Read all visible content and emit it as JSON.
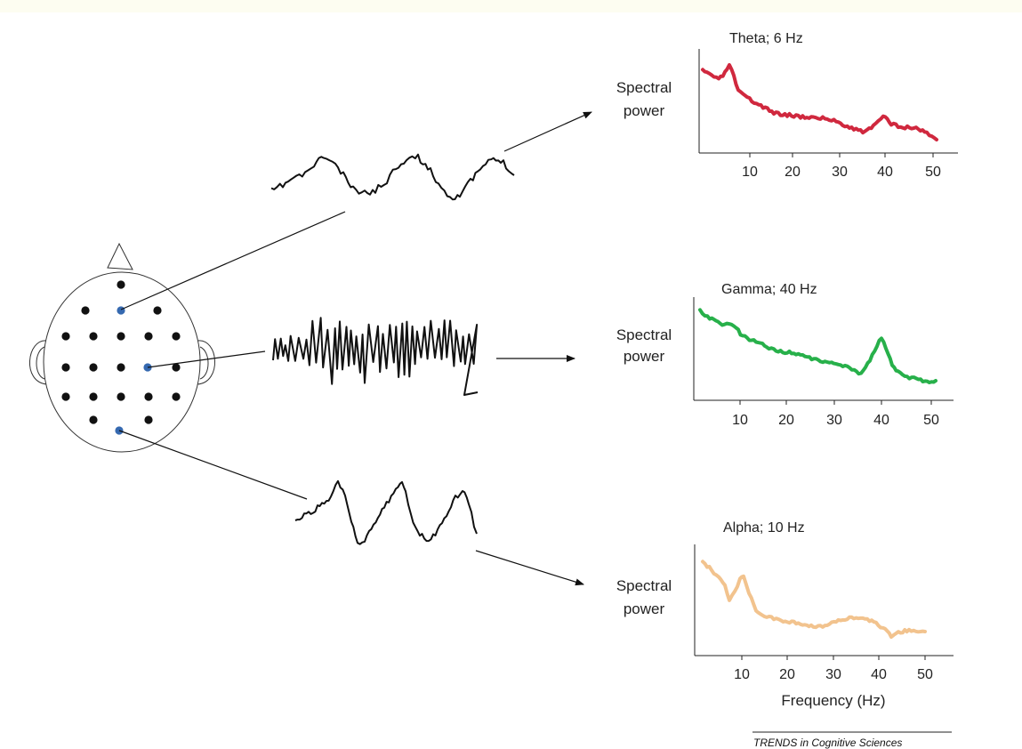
{
  "colors": {
    "theta": "#d0283e",
    "gamma": "#27b04a",
    "alpha": "#f2c38e",
    "active_electrode": "#3569b0",
    "electrode": "#111111",
    "trace": "#111111"
  },
  "panels": [
    {
      "id": "theta",
      "title": "Theta; 6 Hz",
      "ylabel_line1": "Spectral",
      "ylabel_line2": "power",
      "ticks": [
        "10",
        "20",
        "30",
        "40",
        "50"
      ],
      "xlabel": ""
    },
    {
      "id": "gamma",
      "title": "Gamma; 40 Hz",
      "ylabel_line1": "Spectral",
      "ylabel_line2": "power",
      "ticks": [
        "10",
        "20",
        "30",
        "40",
        "50"
      ],
      "xlabel": ""
    },
    {
      "id": "alpha",
      "title": "Alpha; 10 Hz",
      "ylabel_line1": "Spectral",
      "ylabel_line2": "power",
      "ticks": [
        "10",
        "20",
        "30",
        "40",
        "50"
      ],
      "xlabel": "Frequency (Hz)"
    }
  ],
  "credit": "TRENDS in Cognitive Sciences"
}
